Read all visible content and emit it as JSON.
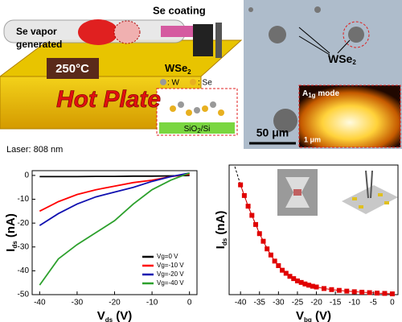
{
  "illustration": {
    "se_coating": "Se coating",
    "se_vapor": [
      "Se vapor",
      "generated"
    ],
    "temperature": "250°C",
    "hot_plate": "Hot Plate",
    "wse2": [
      "WSe",
      "2"
    ],
    "w_legend": ": W",
    "se_legend": ": Se",
    "substrate": [
      "SiO",
      "2",
      "/Si"
    ],
    "laser": "Laser: 808 nm"
  },
  "micrograph": {
    "label": [
      "WSe",
      "2"
    ],
    "scale": "50 μm",
    "inset_mode": [
      "A",
      "1g",
      " mode"
    ],
    "inset_scale": "1 μm"
  },
  "chart_data": [
    {
      "type": "line",
      "xlabel": [
        "V",
        "ds",
        " (V)"
      ],
      "ylabel": [
        "I",
        "ds",
        " (nA)"
      ],
      "x": [
        -40,
        -35,
        -30,
        -25,
        -20,
        -15,
        -10,
        -5,
        0
      ],
      "xlim": [
        -42,
        2
      ],
      "ylim": [
        -50,
        2
      ],
      "xticks": [
        -40,
        -30,
        -20,
        -10,
        0
      ],
      "yticks": [
        0,
        -10,
        -20,
        -30,
        -40,
        -50
      ],
      "legend": "lower right",
      "series": [
        {
          "name": "Vg=0 V",
          "color": "#000000",
          "values": [
            -0.5,
            -0.5,
            -0.5,
            -0.4,
            -0.4,
            -0.3,
            -0.3,
            -0.2,
            0
          ]
        },
        {
          "name": "Vg=-10 V",
          "color": "#ff0000",
          "values": [
            -15,
            -11,
            -8,
            -6,
            -4.5,
            -3,
            -2,
            -0.5,
            0.5
          ]
        },
        {
          "name": "Vg=-20 V",
          "color": "#1010b0",
          "values": [
            -21,
            -16,
            -12,
            -9,
            -7,
            -5,
            -2.5,
            -0.5,
            1
          ]
        },
        {
          "name": "Vg=-40 V",
          "color": "#2ca02c",
          "values": [
            -46,
            -35,
            -29,
            -24,
            -19,
            -12,
            -6,
            -2,
            1
          ]
        }
      ]
    },
    {
      "type": "scatter",
      "xlabel": [
        "V",
        "bg",
        " (V)"
      ],
      "ylabel": [
        "I",
        "ds",
        " (nA)"
      ],
      "x": [
        -40,
        -39,
        -38,
        -37,
        -36,
        -35,
        -34,
        -33,
        -32,
        -31,
        -30,
        -29,
        -28,
        -27,
        -26,
        -25,
        -24,
        -23,
        -22,
        -21,
        -20,
        -18,
        -16,
        -14,
        -12,
        -10,
        -8,
        -6,
        -4,
        -2,
        0
      ],
      "xlim": [
        -43,
        1.5
      ],
      "ylim": [
        0,
        85
      ],
      "xticks": [
        -40,
        -35,
        -30,
        -25,
        -20,
        -15,
        -10,
        -5,
        0
      ],
      "series": [
        {
          "color": "#e00000",
          "values": [
            72,
            65,
            58,
            52,
            46,
            40,
            35,
            30,
            26,
            22,
            19,
            16,
            14,
            12,
            10.5,
            9,
            8,
            7,
            6.2,
            5.5,
            5,
            4,
            3.3,
            2.8,
            2.3,
            1.9,
            1.6,
            1.3,
            1,
            0.8,
            0.5
          ]
        }
      ],
      "fit": {
        "color": "#000000",
        "x": [
          -41.5,
          -40,
          -38,
          -36,
          -34,
          -32
        ],
        "values": [
          84,
          72,
          58,
          46,
          35,
          26
        ]
      }
    }
  ]
}
